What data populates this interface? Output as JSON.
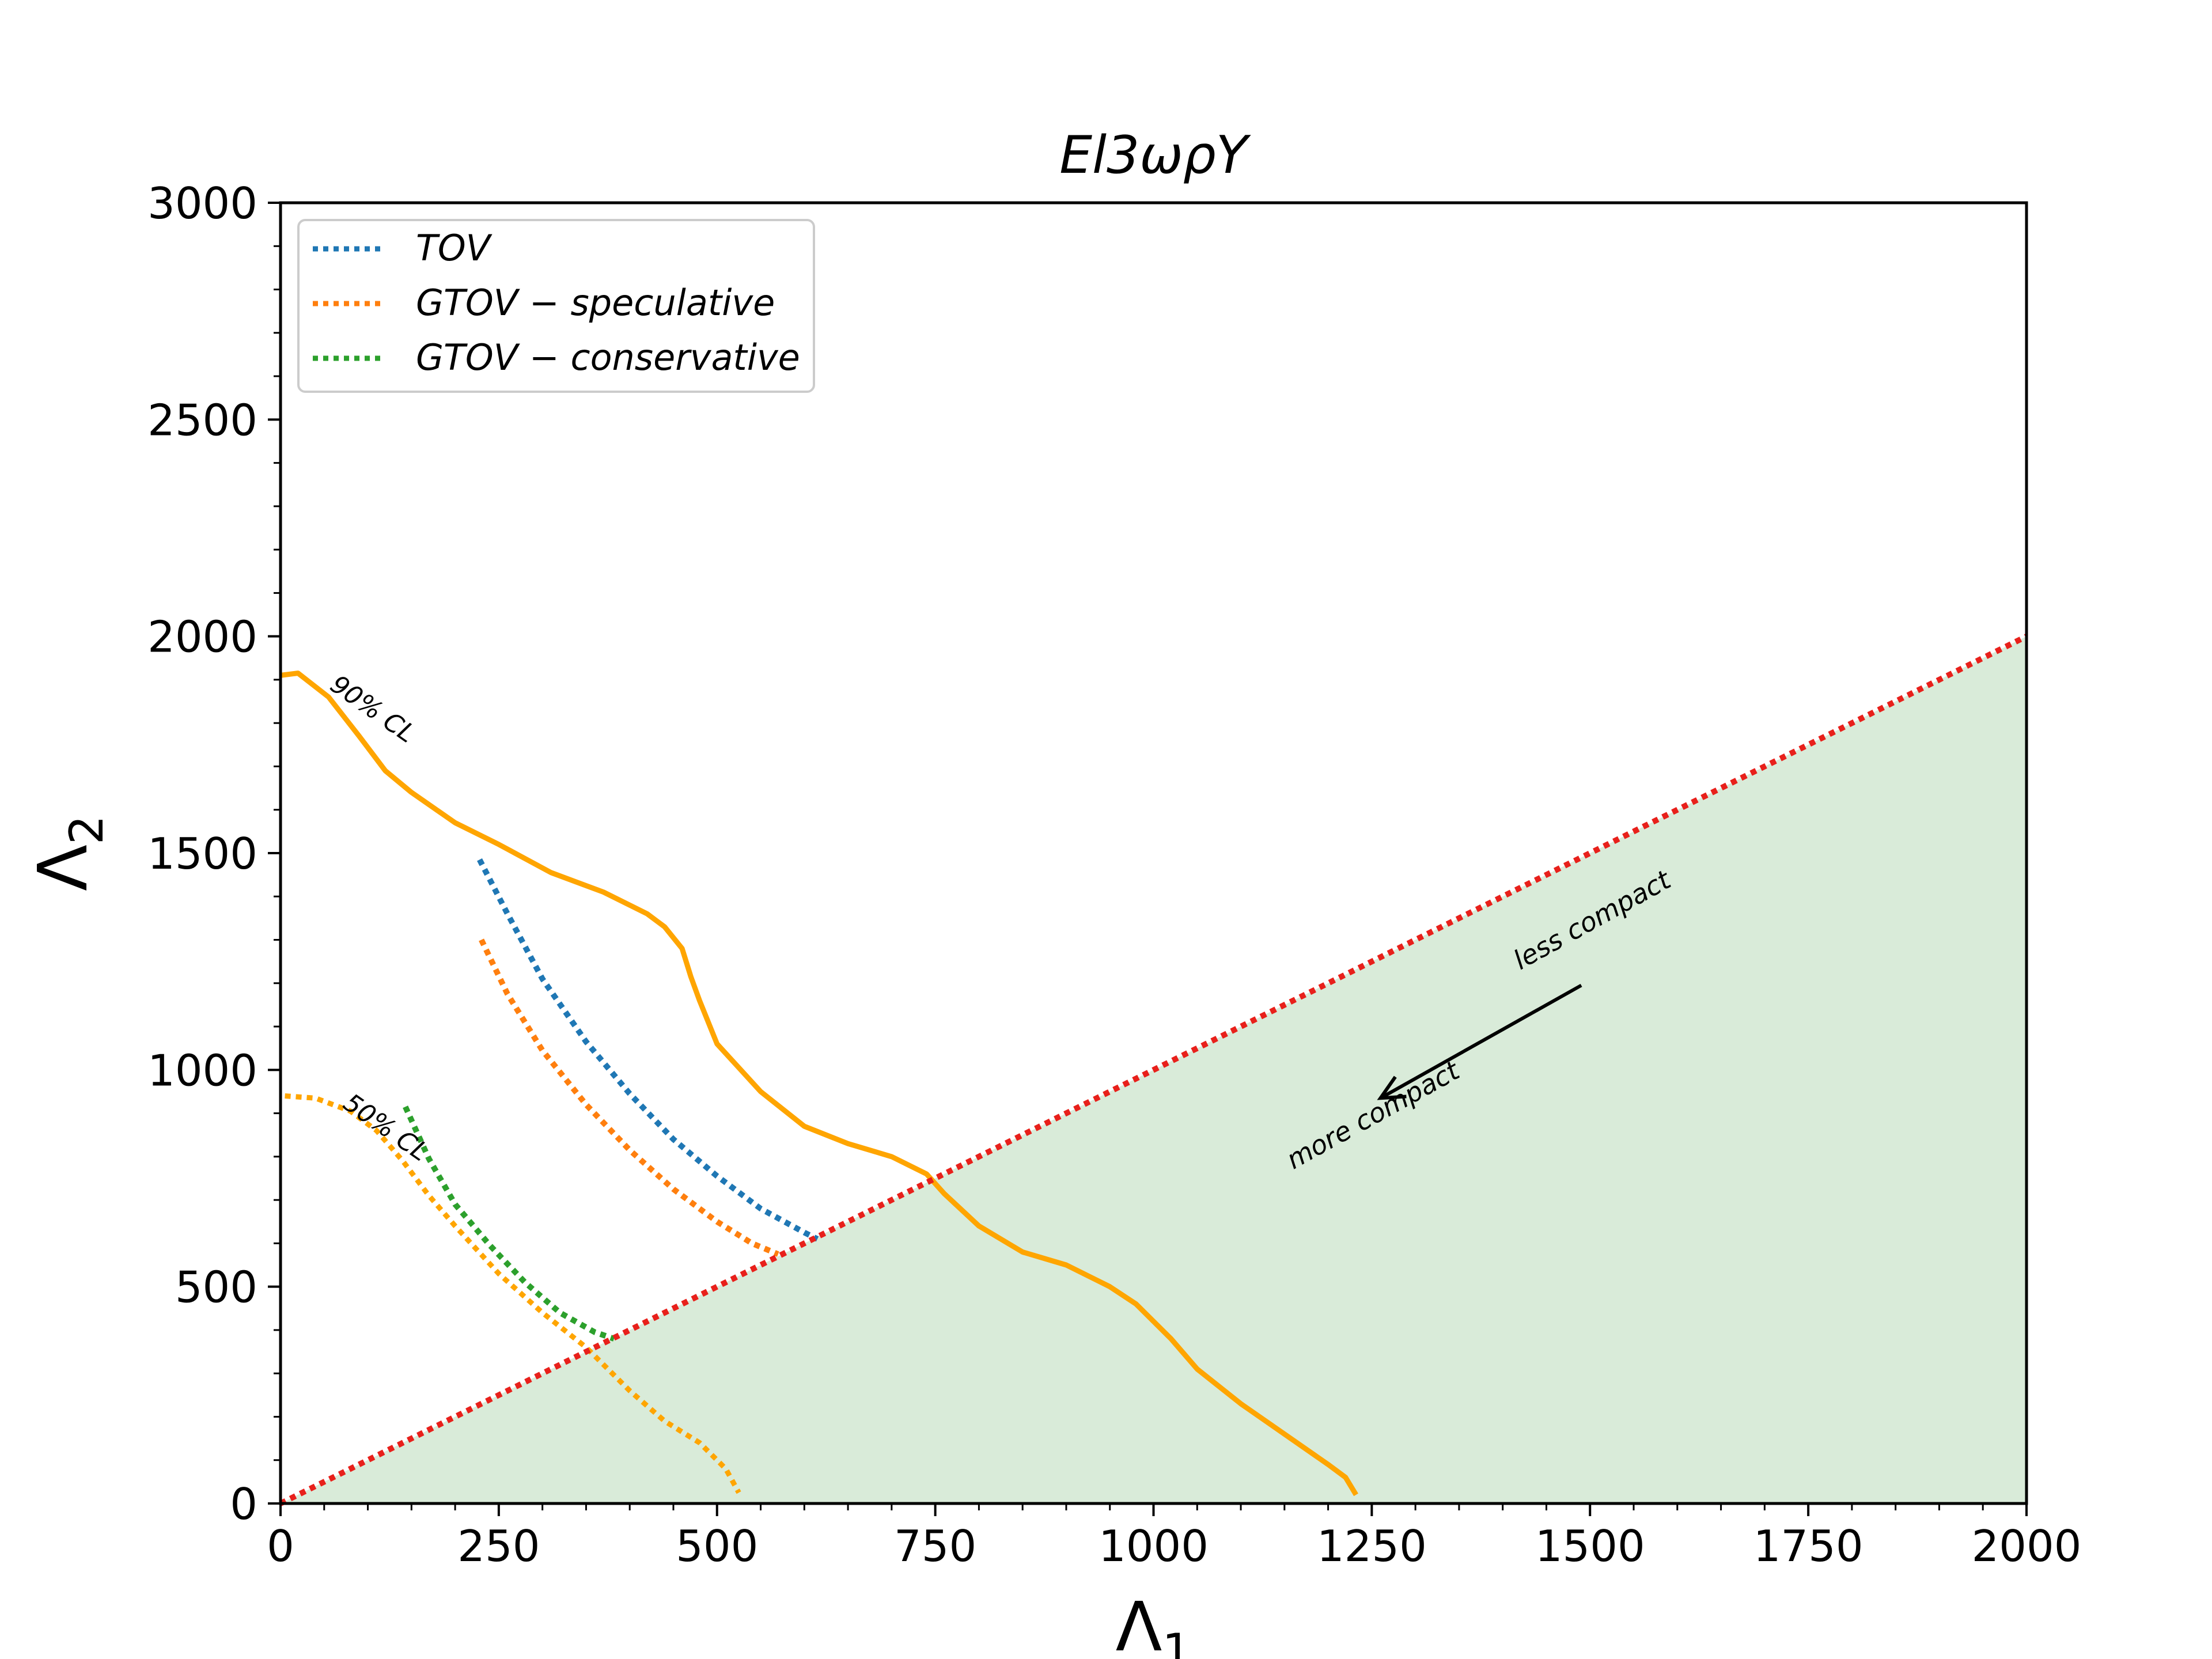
{
  "chart_data": {
    "type": "line",
    "title": "El3ωρY",
    "xlabel": "Λ",
    "xlabel_sub": "1",
    "ylabel": "Λ",
    "ylabel_sub": "2",
    "xlim": [
      0,
      2000
    ],
    "ylim": [
      0,
      3000
    ],
    "xticks": [
      0,
      250,
      500,
      750,
      1000,
      1250,
      1500,
      1750,
      2000
    ],
    "yticks": [
      0,
      500,
      1000,
      1500,
      2000,
      2500,
      3000
    ],
    "grid": false,
    "legend_position": "top-left",
    "colors": {
      "tov": "#1f77b4",
      "gtov_speculative": "#ff7f0e",
      "gtov_conservative": "#2ca02c",
      "contour": "#ffa500",
      "diagonal": "#e8201b",
      "shade": "#d9ebd9"
    },
    "series": [
      {
        "name": "TOV",
        "style": "dotted",
        "color": "#1f77b4",
        "x": [
          228,
          260,
          300,
          350,
          400,
          450,
          500,
          550,
          600,
          615
        ],
        "y": [
          1485,
          1360,
          1210,
          1065,
          945,
          840,
          755,
          680,
          625,
          610
        ]
      },
      {
        "name": "GTOV − speculative",
        "style": "dotted",
        "color": "#ff7f0e",
        "x": [
          230,
          260,
          300,
          350,
          400,
          450,
          500,
          540,
          570
        ],
        "y": [
          1300,
          1175,
          1045,
          920,
          815,
          725,
          650,
          600,
          575
        ]
      },
      {
        "name": "GTOV − conservative",
        "style": "dotted",
        "color": "#2ca02c",
        "x": [
          143,
          170,
          200,
          240,
          280,
          320,
          360,
          382
        ],
        "y": [
          915,
          795,
          690,
          595,
          510,
          440,
          395,
          380
        ]
      }
    ],
    "contours": [
      {
        "label": "90% CL",
        "style": "solid",
        "color": "#ffa500",
        "x": [
          0,
          20,
          55,
          90,
          120,
          150,
          200,
          250,
          310,
          370,
          420,
          440,
          460,
          470,
          480,
          500,
          550,
          600,
          650,
          700,
          740,
          760,
          800,
          850,
          900,
          950,
          980,
          1020,
          1050,
          1100,
          1150,
          1200,
          1220,
          1232
        ],
        "y": [
          1910,
          1915,
          1860,
          1770,
          1690,
          1640,
          1570,
          1520,
          1455,
          1410,
          1360,
          1330,
          1280,
          1215,
          1160,
          1060,
          950,
          870,
          830,
          800,
          760,
          715,
          640,
          580,
          550,
          500,
          460,
          380,
          310,
          230,
          160,
          90,
          60,
          20
        ]
      },
      {
        "label": "50% CL",
        "style": "dotted",
        "color": "#ffa500",
        "x": [
          5,
          40,
          80,
          110,
          140,
          170,
          200,
          250,
          300,
          350,
          400,
          440,
          480,
          510,
          525
        ],
        "y": [
          940,
          935,
          905,
          860,
          790,
          710,
          640,
          530,
          440,
          360,
          260,
          190,
          140,
          80,
          25
        ]
      }
    ],
    "reference_line": {
      "style": "dotted",
      "color": "#e8201b",
      "x": [
        0,
        2000
      ],
      "y": [
        0,
        2000
      ]
    },
    "shaded_region": {
      "color": "#d9ebd9",
      "x": [
        0,
        2000,
        2000
      ],
      "y": [
        0,
        2000,
        0
      ]
    },
    "annotations": [
      {
        "text": "less compact",
        "x": 1420,
        "y": 1230
      },
      {
        "text": "more compact",
        "x": 1160,
        "y": 770
      },
      {
        "text": "90% CL",
        "x": 55,
        "y": 1880
      },
      {
        "text": "50% CL",
        "x": 70,
        "y": 915
      }
    ],
    "arrow": {
      "from": [
        1490,
        1195
      ],
      "to": [
        1260,
        935
      ]
    }
  }
}
